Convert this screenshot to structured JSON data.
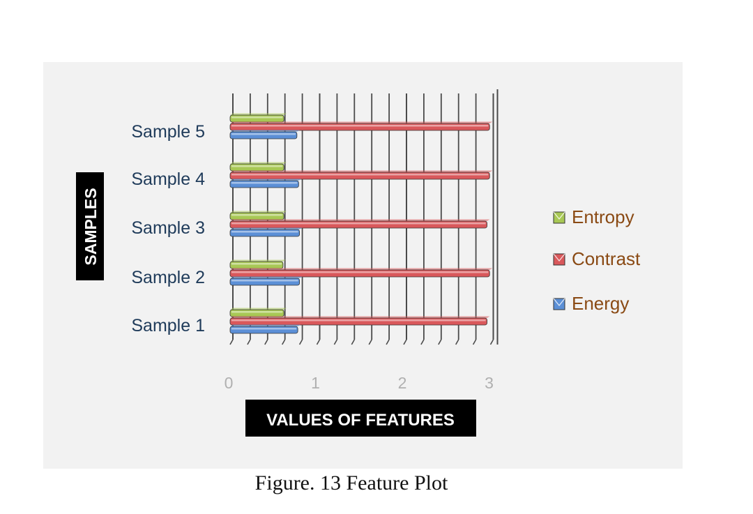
{
  "caption": "Figure. 13 Feature Plot",
  "chart_data": {
    "type": "bar",
    "orientation": "horizontal",
    "three_d": true,
    "categories": [
      "Sample 1",
      "Sample 2",
      "Sample 3",
      "Sample 4",
      "Sample 5"
    ],
    "series": [
      {
        "name": "Energy",
        "color": "#5b8fd6",
        "values": [
          0.78,
          0.8,
          0.8,
          0.79,
          0.77
        ]
      },
      {
        "name": "Contrast",
        "color": "#d9585b",
        "values": [
          2.96,
          2.99,
          2.96,
          2.99,
          2.99
        ]
      },
      {
        "name": "Entropy",
        "color": "#a8c855",
        "values": [
          0.62,
          0.61,
          0.62,
          0.62,
          0.62
        ]
      }
    ],
    "xlabel": "VALUES OF FEATURES",
    "ylabel": "SAMPLES",
    "xlim": [
      0,
      3
    ],
    "xticks": [
      0,
      1,
      2,
      3
    ],
    "grid": true,
    "legend_position": "right",
    "legend_order": [
      "Entropy",
      "Contrast",
      "Energy"
    ]
  }
}
